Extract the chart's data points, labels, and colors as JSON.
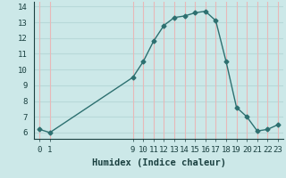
{
  "xlabel": "Humidex (Indice chaleur)",
  "x": [
    0,
    1,
    9,
    10,
    11,
    12,
    13,
    14,
    15,
    16,
    17,
    18,
    19,
    20,
    21,
    22,
    23
  ],
  "y": [
    6.2,
    6.0,
    9.5,
    10.5,
    11.8,
    12.8,
    13.3,
    13.4,
    13.6,
    13.7,
    13.1,
    10.5,
    7.6,
    7.0,
    6.1,
    6.2,
    6.5
  ],
  "line_color": "#2d7070",
  "marker": "D",
  "marker_size": 2.5,
  "bg_color": "#cce8e8",
  "hgrid_color": "#b8d8d8",
  "vgrid_color": "#e8b8b8",
  "ylim": [
    5.6,
    14.3
  ],
  "xlim": [
    -0.5,
    23.5
  ],
  "yticks": [
    6,
    7,
    8,
    9,
    10,
    11,
    12,
    13,
    14
  ],
  "xticks": [
    0,
    1,
    9,
    10,
    11,
    12,
    13,
    14,
    15,
    16,
    17,
    18,
    19,
    20,
    21,
    22,
    23
  ],
  "tick_label_fontsize": 6.5,
  "xlabel_fontsize": 7.5,
  "label_color": "#1a4040"
}
